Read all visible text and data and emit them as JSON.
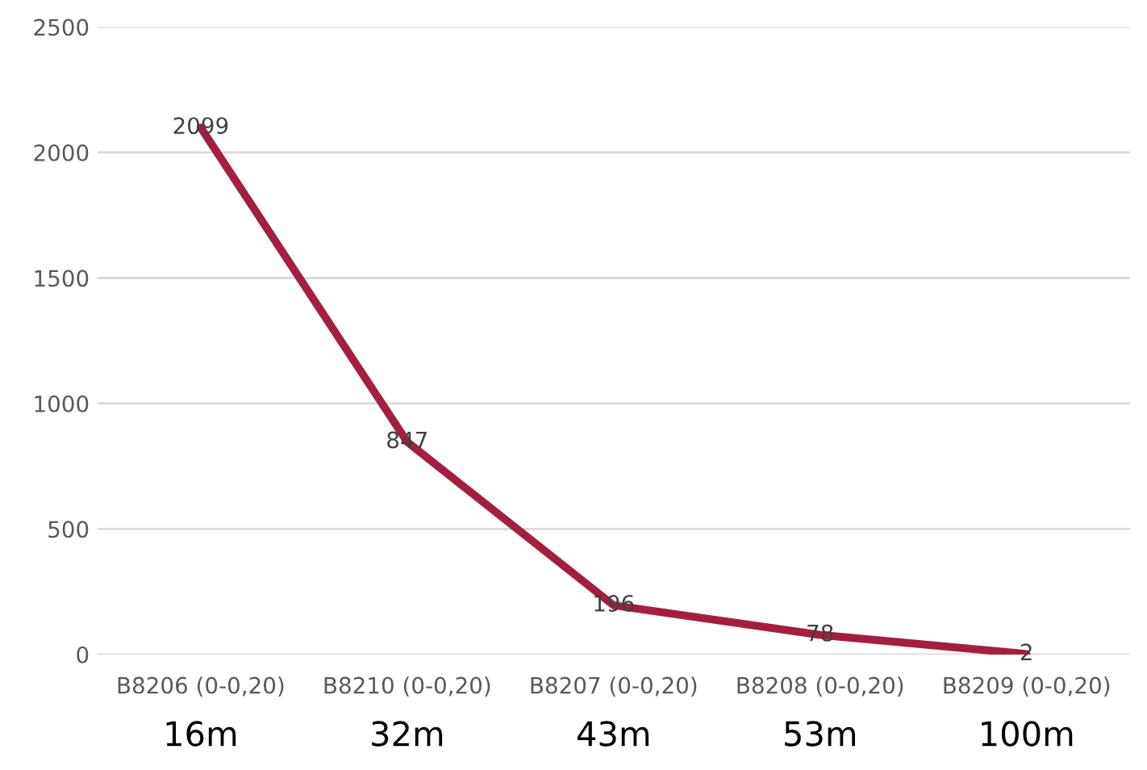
{
  "chart_data": {
    "type": "line",
    "categories": [
      "B8206 (0-0,20)\n16m",
      "B8210 (0-0,20)\n32m",
      "B8207 (0-0,20)\n43m",
      "B8208 (0-0,20)\n53m",
      "B8209 (0-0,20)\n100m"
    ],
    "series": [
      {
        "color": "#a31f42",
        "values": [
          2099,
          847,
          196,
          78,
          2
        ]
      }
    ],
    "ylim": [
      0,
      2500
    ],
    "yticks": [
      0,
      500,
      1000,
      1500,
      2000,
      2500
    ],
    "grid": "y",
    "data_labels": true,
    "marker": "none",
    "line_style": "solid"
  }
}
